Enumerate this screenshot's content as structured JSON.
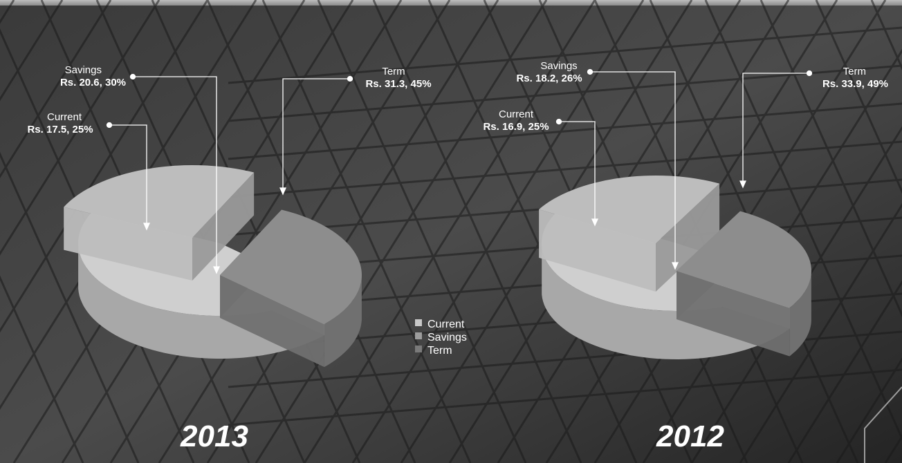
{
  "chart_data": [
    {
      "type": "pie",
      "title": "2013",
      "slices": [
        {
          "name": "Current",
          "label": "Rs. 17.5, 25%",
          "value": 17.5,
          "percent": 25
        },
        {
          "name": "Savings",
          "label": "Rs. 20.6, 30%",
          "value": 20.6,
          "percent": 30
        },
        {
          "name": "Term",
          "label": "Rs. 31.3, 45%",
          "value": 31.3,
          "percent": 45
        }
      ]
    },
    {
      "type": "pie",
      "title": "2012",
      "slices": [
        {
          "name": "Current",
          "label": "Rs. 16.9, 25%",
          "value": 16.9,
          "percent": 25
        },
        {
          "name": "Savings",
          "label": "Rs. 18.2, 26%",
          "value": 18.2,
          "percent": 26
        },
        {
          "name": "Term",
          "label": "Rs. 33.9, 49%",
          "value": 33.9,
          "percent": 49
        }
      ]
    }
  ],
  "legend": {
    "items": [
      {
        "name": "Current",
        "color": "#c8c8c8"
      },
      {
        "name": "Savings",
        "color": "#9c9c9c"
      },
      {
        "name": "Term",
        "color": "#7a7a7a"
      }
    ]
  },
  "colors": {
    "background": "#2a2a2a",
    "current": "#b8b8b8",
    "savings": "#8c8c8c",
    "term": "#cccccc",
    "text": "#ffffff"
  }
}
